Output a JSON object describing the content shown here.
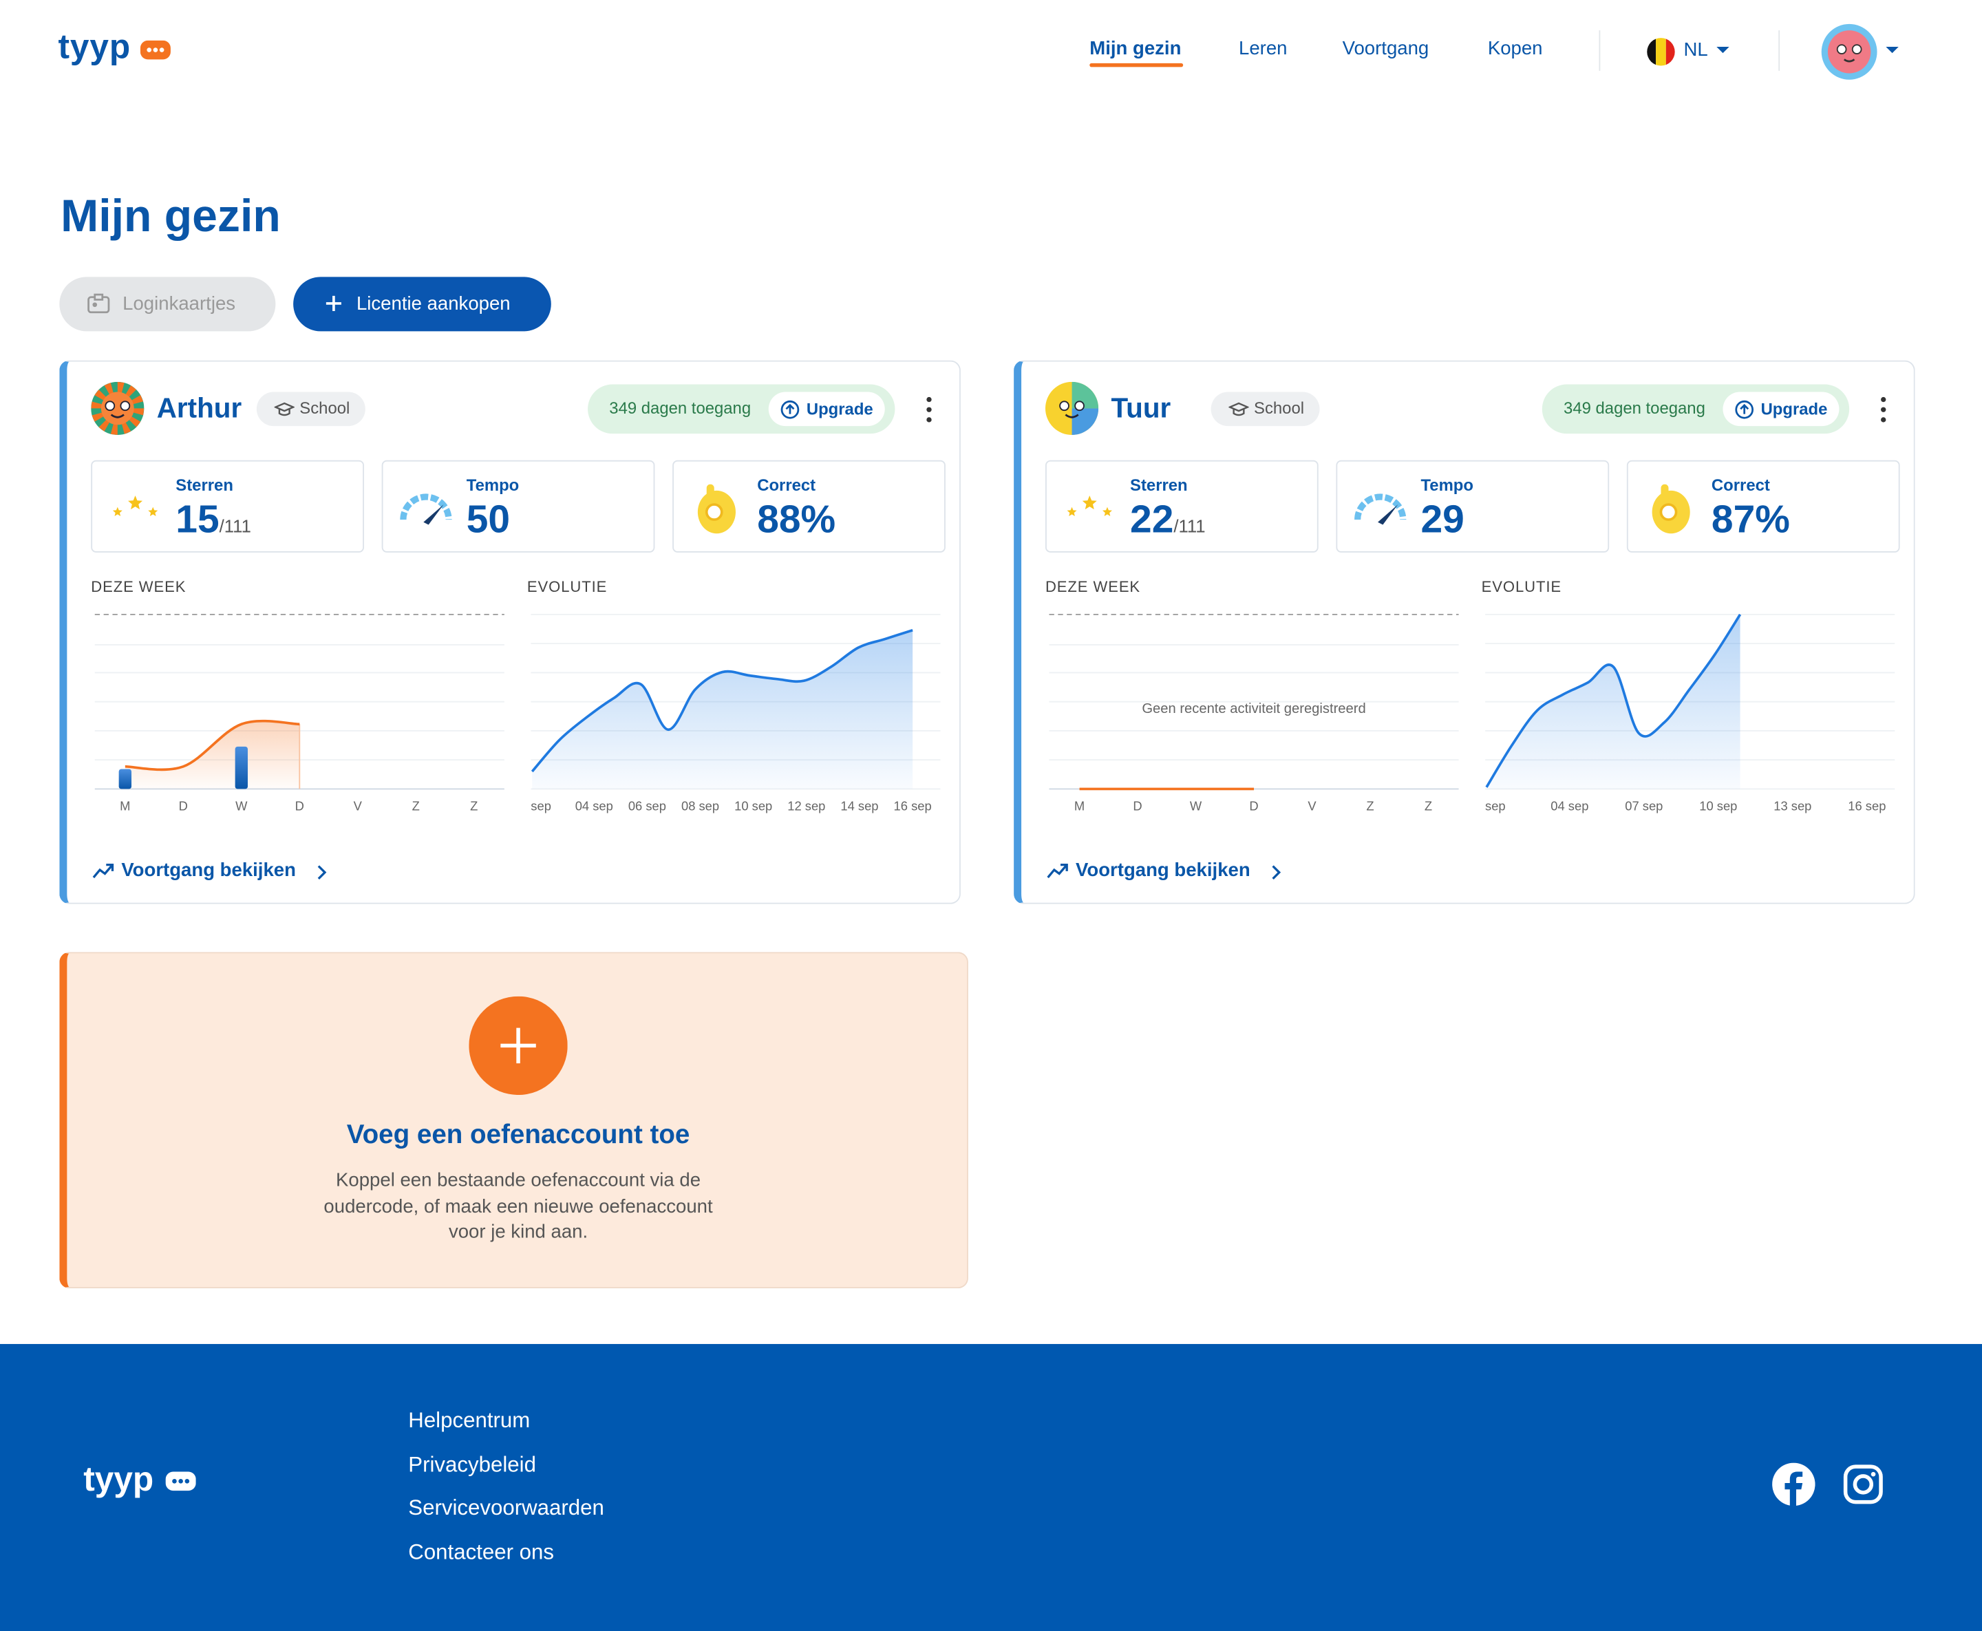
{
  "header": {
    "logo": "tyyp",
    "nav": [
      "Mijn gezin",
      "Leren",
      "Voortgang",
      "Kopen"
    ],
    "language": "NL"
  },
  "page": {
    "title": "Mijn gezin",
    "buttons": [
      "Loginkaartjes",
      "Licentie aankopen"
    ]
  },
  "children": [
    {
      "name": "Arthur",
      "badge": "School",
      "access": "349 dagen toegang",
      "upgrade": "Upgrade",
      "stats": [
        {
          "label": "Sterren",
          "value": 15,
          "suffix": "/111"
        },
        {
          "label": "Tempo",
          "value": 50
        },
        {
          "label": "Correct",
          "value": "88%"
        }
      ],
      "week": {
        "label": "DEZE WEEK",
        "days": [
          "M",
          "D",
          "W",
          "D",
          "V",
          "Z",
          "Z"
        ],
        "bars": [
          8,
          0,
          17,
          0,
          0,
          0,
          0
        ],
        "line": [
          9,
          9,
          26,
          26,
          null,
          null,
          null
        ],
        "ylim": [
          0,
          70
        ]
      },
      "evolution": {
        "label": "EVOLUTIE",
        "x_labels": [
          "sep",
          "04 sep",
          "06 sep",
          "08 sep",
          "10 sep",
          "12 sep",
          "14 sep",
          "16 sep"
        ],
        "values": [
          10,
          28,
          41,
          52,
          60,
          34,
          57,
          67,
          65,
          63,
          62,
          70,
          81,
          86,
          91
        ],
        "ylim": [
          0,
          100
        ]
      },
      "link": "Voortgang bekijken"
    },
    {
      "name": "Tuur",
      "badge": "School",
      "access": "349 dagen toegang",
      "upgrade": "Upgrade",
      "stats": [
        {
          "label": "Sterren",
          "value": 22,
          "suffix": "/111"
        },
        {
          "label": "Tempo",
          "value": 29
        },
        {
          "label": "Correct",
          "value": "87%"
        }
      ],
      "week": {
        "label": "DEZE WEEK",
        "days": [
          "M",
          "D",
          "W",
          "D",
          "V",
          "Z",
          "Z"
        ],
        "bars": [
          0,
          0,
          0,
          0,
          0,
          0,
          0
        ],
        "line": [
          0,
          0,
          0,
          0,
          null,
          null,
          null
        ],
        "ylim": [
          0,
          70
        ],
        "message": "Geen recente activiteit geregistreerd"
      },
      "evolution": {
        "label": "EVOLUTIE",
        "x_labels": [
          "sep",
          "04 sep",
          "07 sep",
          "10 sep",
          "13 sep",
          "16 sep"
        ],
        "values": [
          1,
          25,
          45,
          54,
          61,
          70,
          32,
          38,
          57,
          77,
          100,
          null,
          null,
          null,
          null,
          null
        ],
        "ylim": [
          0,
          100
        ]
      },
      "link": "Voortgang bekijken"
    }
  ],
  "add_card": {
    "title": "Voeg een oefenaccount toe",
    "text": [
      "Koppel een bestaande oefenaccount via de",
      "oudercode, of maak een nieuwe oefenaccount",
      "voor je kind aan."
    ]
  },
  "footer": {
    "logo": "tyyp",
    "links": [
      "Helpcentrum",
      "Privacybeleid",
      "Servicevoorwaarden",
      "Contacteer ons"
    ]
  }
}
